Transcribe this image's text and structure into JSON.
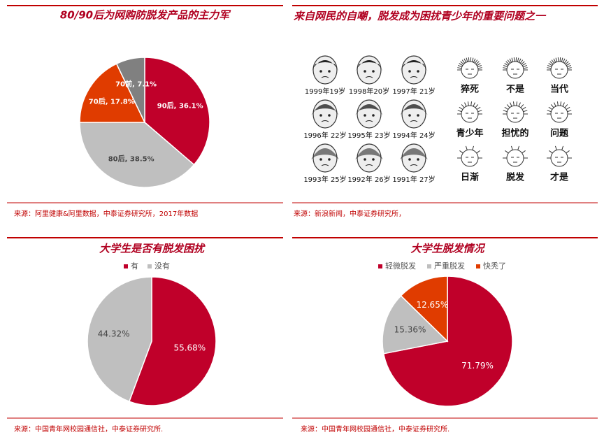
{
  "chart_data": [
    {
      "type": "pie",
      "title": "80/90后为网购防脱发产品的主力军",
      "categories": [
        "90后",
        "80后",
        "70后",
        "70前"
      ],
      "values": [
        36.1,
        38.5,
        17.8,
        7.1
      ],
      "value_labels": [
        "90后, 36.1%",
        "80后, 38.5%",
        "70后, 17.8%",
        "70前, 7.1%"
      ],
      "colors": [
        "#c0002a",
        "#bfbfbf",
        "#e03c00",
        "#808080"
      ],
      "legend": false,
      "source": "来源：阿里健康&阿里数据，中泰证券研究所，2017年数据"
    },
    {
      "type": "pie",
      "title": "大学生是否有脱发困扰",
      "categories": [
        "有",
        "没有"
      ],
      "values": [
        55.68,
        44.32
      ],
      "value_labels": [
        "55.68%",
        "44.32%"
      ],
      "colors": [
        "#c0002a",
        "#bfbfbf"
      ],
      "legend": "top",
      "source": "来源：中国青年网校园通信社，中泰证券研究所."
    },
    {
      "type": "pie",
      "title": "大学生脱发情况",
      "categories": [
        "轻微脱发",
        "严重脱发",
        "快秃了"
      ],
      "values": [
        71.79,
        15.36,
        12.65
      ],
      "value_labels": [
        "71.79%",
        "15.36%",
        "12.65%"
      ],
      "colors": [
        "#c0002a",
        "#bfbfbf",
        "#e03c00"
      ],
      "legend": "top",
      "source": "来源：中国青年网校园通信社，中泰证券研究所."
    }
  ],
  "meme_panel": {
    "title": "来自网民的自嘲，脱发成为困扰青少年的重要问题之一",
    "faces": [
      "1999年19岁",
      "1998年20岁",
      "1997年 21岁",
      "1996年 22岁",
      "1995年 23岁",
      "1994年 24岁",
      "1993年 25岁",
      "1992年 26岁",
      "1991年 27岁"
    ],
    "words": [
      "猝死",
      "不是",
      "当代",
      "青少年",
      "担忧的",
      "问题",
      "日渐",
      "脱发",
      "才是"
    ],
    "source": "来源：新浪新闻，中泰证券研究所，"
  }
}
